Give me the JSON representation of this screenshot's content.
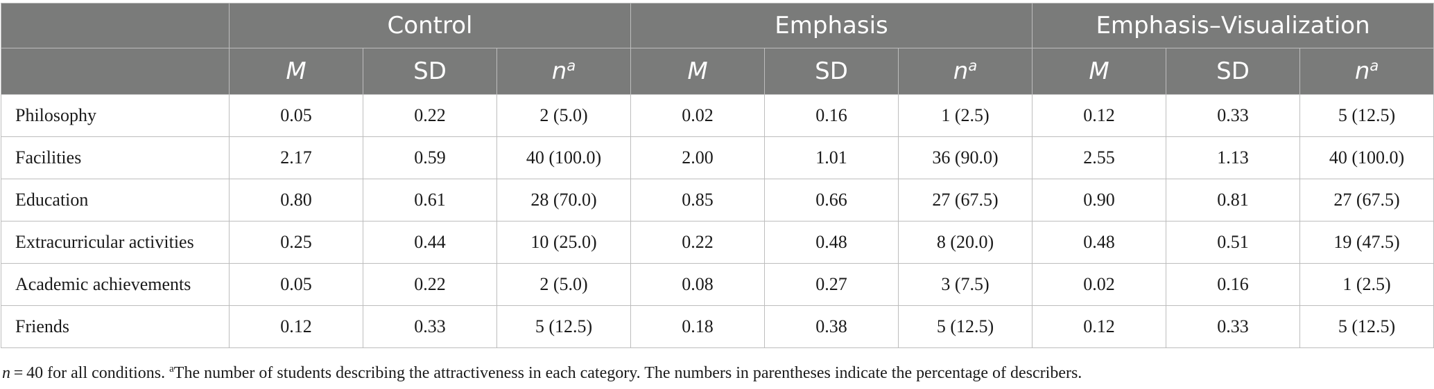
{
  "table": {
    "groups": [
      {
        "label": "Control"
      },
      {
        "label": "Emphasis"
      },
      {
        "label": "Emphasis–Visualization"
      }
    ],
    "subheaders": {
      "m": "M",
      "sd": "SD",
      "n": "n",
      "n_sup": "a"
    },
    "rows": [
      {
        "label": "Philosophy",
        "cells": [
          "0.05",
          "0.22",
          "2 (5.0)",
          "0.02",
          "0.16",
          "1 (2.5)",
          "0.12",
          "0.33",
          "5 (12.5)"
        ]
      },
      {
        "label": "Facilities",
        "cells": [
          "2.17",
          "0.59",
          "40 (100.0)",
          "2.00",
          "1.01",
          "36 (90.0)",
          "2.55",
          "1.13",
          "40 (100.0)"
        ]
      },
      {
        "label": "Education",
        "cells": [
          "0.80",
          "0.61",
          "28 (70.0)",
          "0.85",
          "0.66",
          "27 (67.5)",
          "0.90",
          "0.81",
          "27 (67.5)"
        ]
      },
      {
        "label": "Extracurricular activities",
        "cells": [
          "0.25",
          "0.44",
          "10 (25.0)",
          "0.22",
          "0.48",
          "8 (20.0)",
          "0.48",
          "0.51",
          "19 (47.5)"
        ]
      },
      {
        "label": "Academic achievements",
        "cells": [
          "0.05",
          "0.22",
          "2 (5.0)",
          "0.08",
          "0.27",
          "3 (7.5)",
          "0.02",
          "0.16",
          "1 (2.5)"
        ]
      },
      {
        "label": "Friends",
        "cells": [
          "0.12",
          "0.33",
          "5 (12.5)",
          "0.18",
          "0.38",
          "5 (12.5)",
          "0.12",
          "0.33",
          "5 (12.5)"
        ]
      }
    ]
  },
  "footnote": {
    "n_symbol": "n",
    "eq": " = 40 for all conditions. ",
    "marker": "a",
    "text": "The number of students describing the attractiveness in each category. The numbers in parentheses indicate the percentage of describers."
  },
  "colors": {
    "header_bg": "#7a7b7a",
    "header_text": "#ffffff",
    "grid": "#bdbdbd",
    "body_text": "#1a1a1a"
  }
}
